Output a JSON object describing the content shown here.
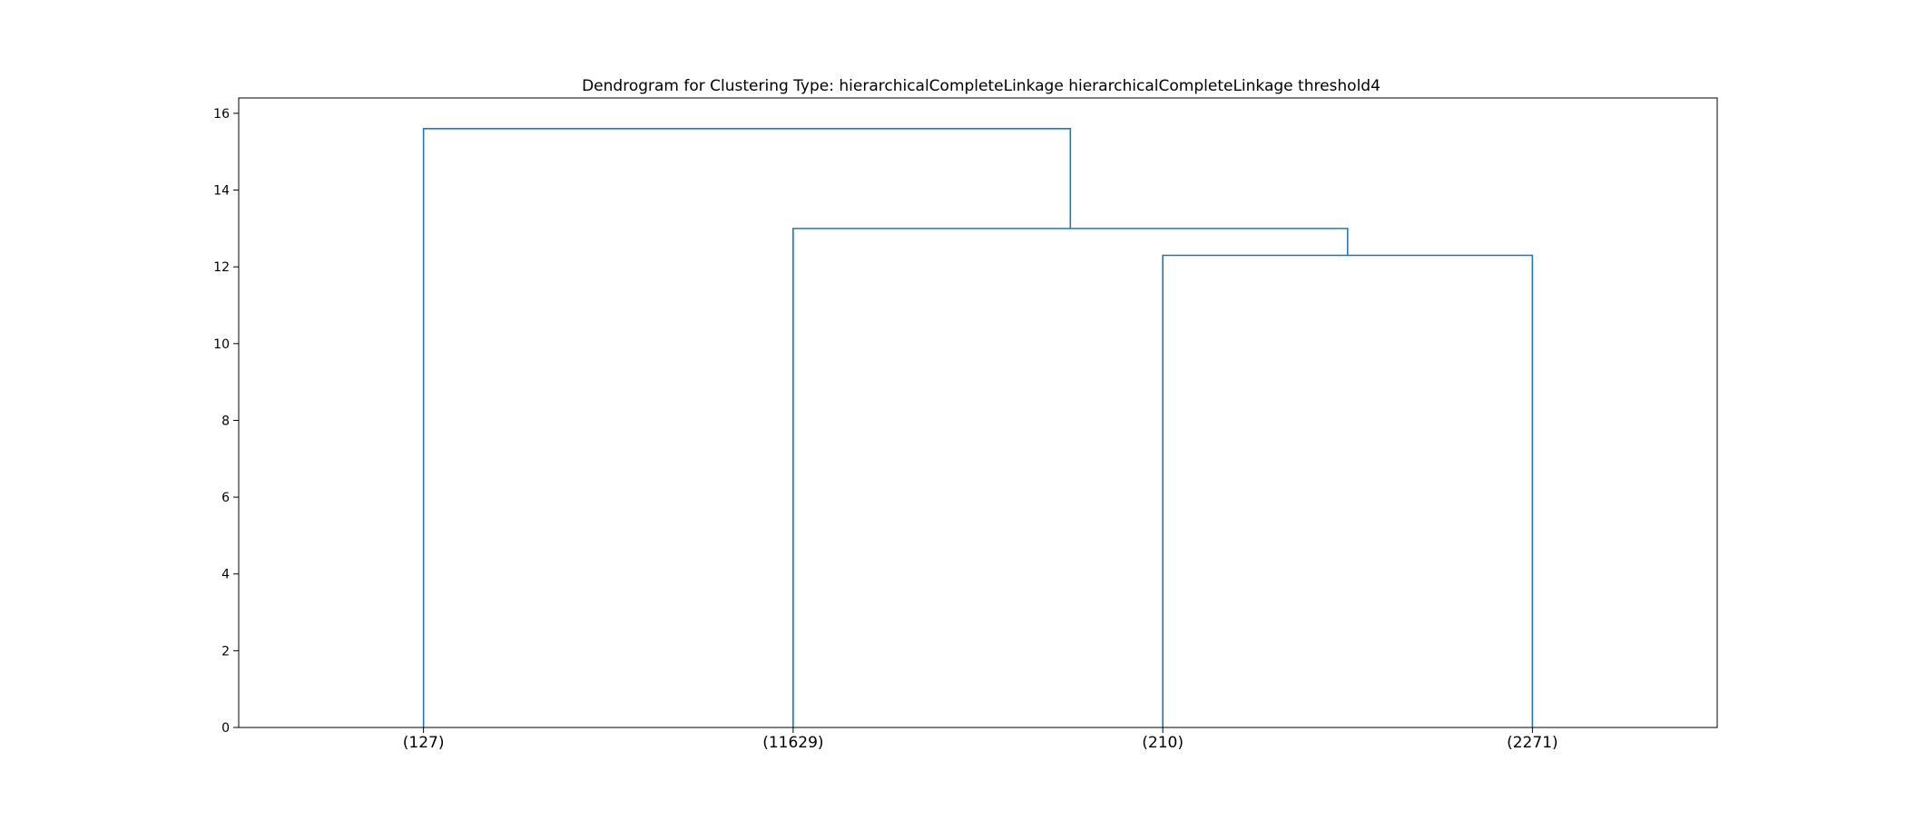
{
  "chart_data": {
    "type": "dendrogram",
    "title": "Dendrogram for Clustering Type: hierarchicalCompleteLinkage hierarchicalCompleteLinkage threshold4",
    "xlabel": "",
    "ylabel": "",
    "ylim": [
      0,
      16.4
    ],
    "y_ticks": [
      0,
      2,
      4,
      6,
      8,
      10,
      12,
      14,
      16
    ],
    "leaves": [
      "(127)",
      "(11629)",
      "(210)",
      "(2271)"
    ],
    "line_color": "#1f77b4",
    "grid": false,
    "merges": [
      {
        "left": "(210)",
        "right": "(2271)",
        "height": 12.3
      },
      {
        "left": "(11629)",
        "right": "cluster:(210)+(2271)",
        "height": 13.0
      },
      {
        "left": "(127)",
        "right": "cluster:(11629)+(210)+(2271)",
        "height": 15.6
      }
    ]
  }
}
